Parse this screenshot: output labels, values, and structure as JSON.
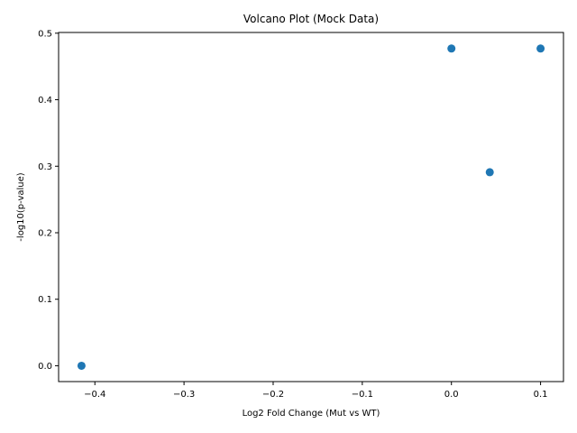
{
  "chart_data": {
    "type": "scatter",
    "title": "Volcano Plot (Mock Data)",
    "xlabel": "Log2 Fold Change (Mut vs WT)",
    "ylabel": "-log10(p-value)",
    "xlim": [
      -0.4407,
      0.1257
    ],
    "ylim": [
      -0.0238,
      0.5011
    ],
    "xticks": [
      -0.4,
      -0.3,
      -0.2,
      -0.1,
      0.0,
      0.1
    ],
    "xtick_labels": [
      "−0.4",
      "−0.3",
      "−0.2",
      "−0.1",
      "0.0",
      "0.1"
    ],
    "yticks": [
      0.0,
      0.1,
      0.2,
      0.3,
      0.4,
      0.5
    ],
    "ytick_labels": [
      "0.0",
      "0.1",
      "0.2",
      "0.3",
      "0.4",
      "0.5"
    ],
    "grid": false,
    "legend": "none",
    "marker_color": "#1f77b4",
    "points": [
      {
        "x": -0.415,
        "y": 0.0
      },
      {
        "x": 0.0,
        "y": 0.477
      },
      {
        "x": 0.043,
        "y": 0.291
      },
      {
        "x": 0.1,
        "y": 0.477
      }
    ]
  }
}
